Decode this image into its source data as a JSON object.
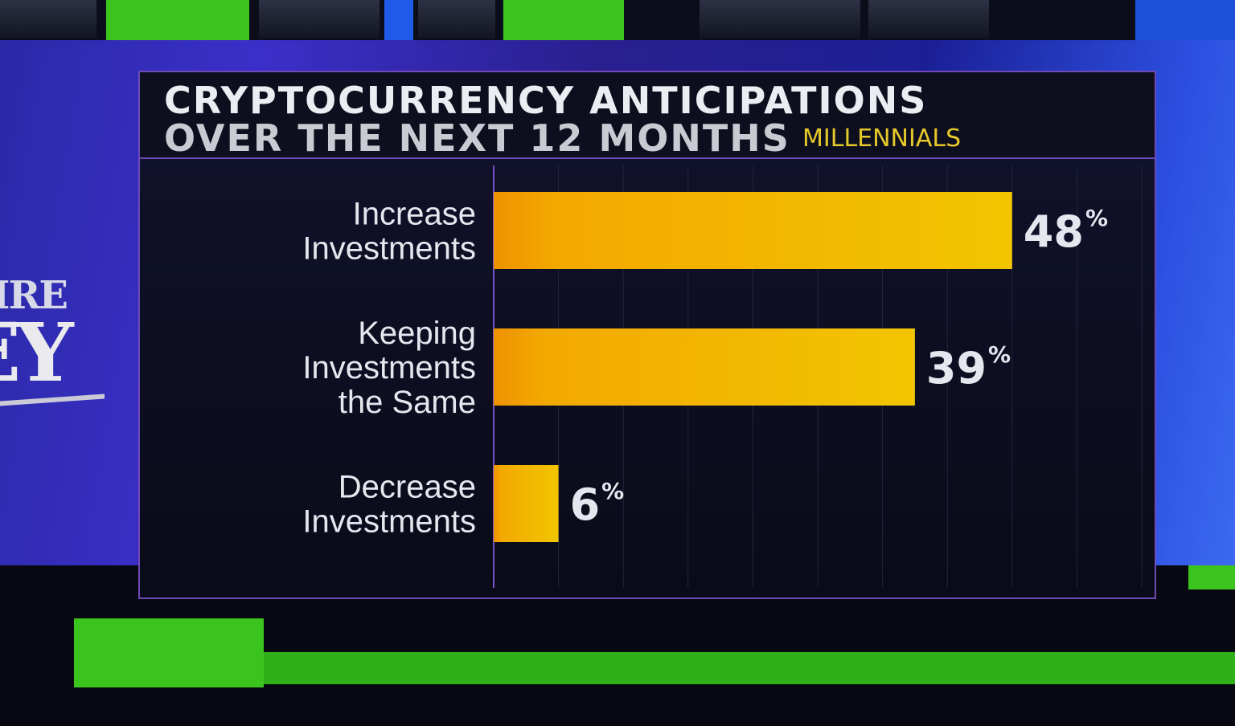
{
  "chart_data": {
    "type": "bar",
    "orientation": "horizontal",
    "title": "CRYPTOCURRENCY ANTICIPATIONS",
    "subtitle": "OVER THE NEXT 12 MONTHS",
    "group_label": "MILLENNIALS",
    "categories": [
      [
        "Increase",
        "Investments"
      ],
      [
        "Keeping",
        "Investments",
        "the Same"
      ],
      [
        "Decrease",
        "Investments"
      ]
    ],
    "values": [
      48,
      39,
      6
    ],
    "value_suffix": "%",
    "xlim": [
      0,
      60
    ],
    "bar_color": "#f0b800",
    "bar_color_start": "#ee9200",
    "grid": true
  },
  "background": {
    "logo_text_top": "IRE",
    "logo_text_bottom": "EY"
  }
}
